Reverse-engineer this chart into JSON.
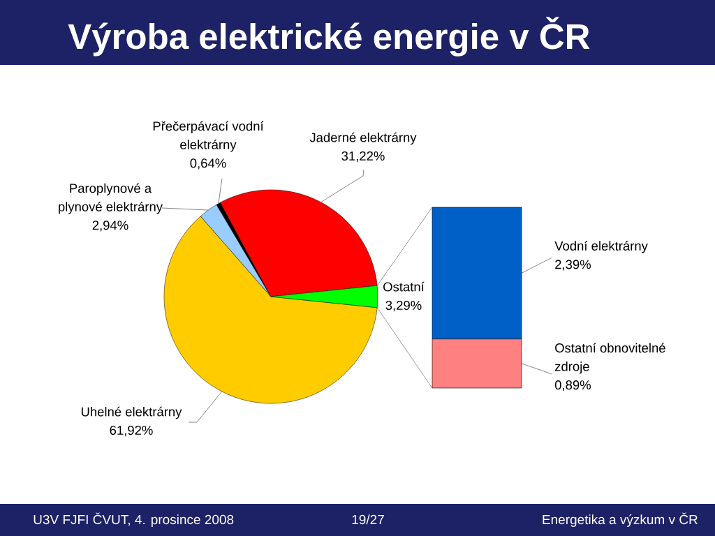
{
  "chart_data": [
    {
      "type": "pie",
      "title": "Výroba elektrické energie v ČR",
      "categories": [
        "Uhelné elektrárny",
        "Paroplynové a plynové elektrárny",
        "Přečerpávací vodní elektrárny",
        "Jaderné elektrárny",
        "Ostatní"
      ],
      "values": [
        61.92,
        2.94,
        0.64,
        31.22,
        3.29
      ],
      "colors": [
        "#ffcc00",
        "#99ccff",
        "#000000",
        "#ff0000",
        "#00ff00"
      ],
      "value_labels": [
        "61,92%",
        "2,94%",
        "0,64%",
        "31,22%",
        "3,29%"
      ],
      "annotations": [
        "U3V FJFI ČVUT, 4. prosince 2008",
        "19/27",
        "Energetika a výzkum v ČR"
      ]
    },
    {
      "type": "bar",
      "stacked": true,
      "categories": [
        null
      ],
      "series": [
        {
          "name": "Ostatní obnovitelné zdroje",
          "color": "#ff8080",
          "values": [
            0.89
          ],
          "value_labels": [
            "0,89%"
          ]
        },
        {
          "name": "Vodní elektrárny",
          "color": "#0060c8",
          "values": [
            2.39
          ],
          "value_labels": [
            "2,39%"
          ]
        }
      ]
    }
  ]
}
